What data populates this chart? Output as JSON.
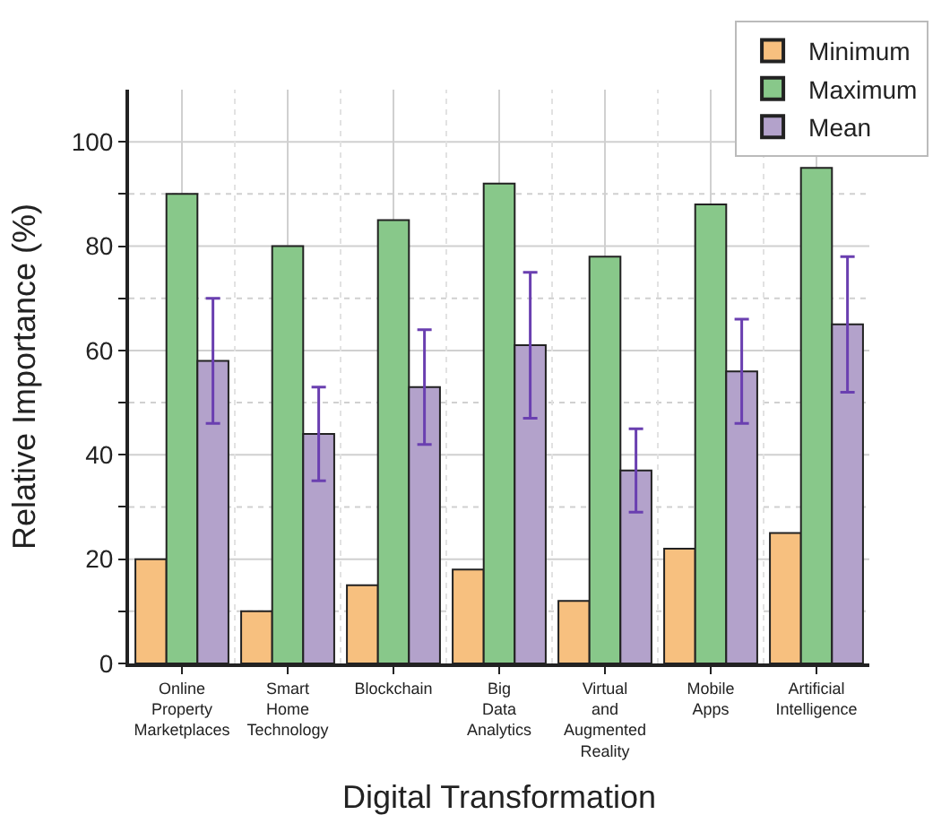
{
  "chart_data": {
    "type": "bar",
    "xlabel": "Digital Transformation",
    "ylabel": "Relative Importance (%)",
    "categories": [
      "Online Property Marketplaces",
      "Smart Home Technology",
      "Blockchain",
      "Big Data Analytics",
      "Virtual and Augmented Reality",
      "Mobile Apps",
      "Artificial Intelligence"
    ],
    "series": [
      {
        "name": "Minimum",
        "color": "#f7c07f",
        "values": [
          20,
          10,
          15,
          18,
          12,
          22,
          25
        ]
      },
      {
        "name": "Maximum",
        "color": "#88c88a",
        "values": [
          90,
          80,
          85,
          92,
          78,
          88,
          95
        ]
      },
      {
        "name": "Mean",
        "color": "#b3a2cb",
        "values": [
          58,
          44,
          53,
          61,
          37,
          56,
          65
        ],
        "errors": [
          12,
          9,
          11,
          14,
          8,
          10,
          13
        ]
      }
    ],
    "ylim": [
      0,
      110
    ],
    "yticks": [
      0,
      {
        "value": 10,
        "label": null
      },
      20,
      {
        "value": 30,
        "label": null
      },
      40,
      {
        "value": 50,
        "label": null
      },
      60,
      {
        "value": 70,
        "label": null
      },
      80,
      {
        "value": 90,
        "label": null
      },
      100
    ],
    "grid": true,
    "legend": "top right"
  }
}
